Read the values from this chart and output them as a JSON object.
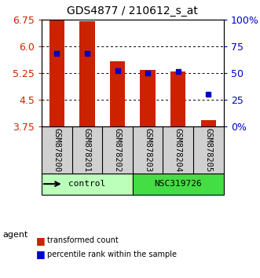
{
  "title": "GDS4877 / 210612_s_at",
  "samples": [
    "GSM878200",
    "GSM878201",
    "GSM878202",
    "GSM878203",
    "GSM878204",
    "GSM878205"
  ],
  "red_values": [
    6.72,
    6.7,
    5.57,
    5.33,
    5.28,
    3.92
  ],
  "blue_percentiles": [
    68,
    68,
    52,
    50,
    51,
    30
  ],
  "ylim": [
    3.75,
    6.75
  ],
  "yticks": [
    3.75,
    4.5,
    5.25,
    6.0,
    6.75
  ],
  "right_yticks": [
    0,
    25,
    50,
    75,
    100
  ],
  "right_ylabels": [
    "0%",
    "25",
    "50",
    "75",
    "100%"
  ],
  "groups": [
    {
      "label": "control",
      "samples": [
        0,
        1,
        2
      ],
      "color": "#bbffbb"
    },
    {
      "label": "NSC319726",
      "samples": [
        3,
        4,
        5
      ],
      "color": "#44dd44"
    }
  ],
  "bar_color": "#cc2200",
  "dot_color": "#0000cc",
  "bar_width": 0.5,
  "agent_label": "agent",
  "legend_red": "transformed count",
  "legend_blue": "percentile rank within the sample",
  "left_label_color": "#cc2200",
  "right_label_color": "#0000cc"
}
